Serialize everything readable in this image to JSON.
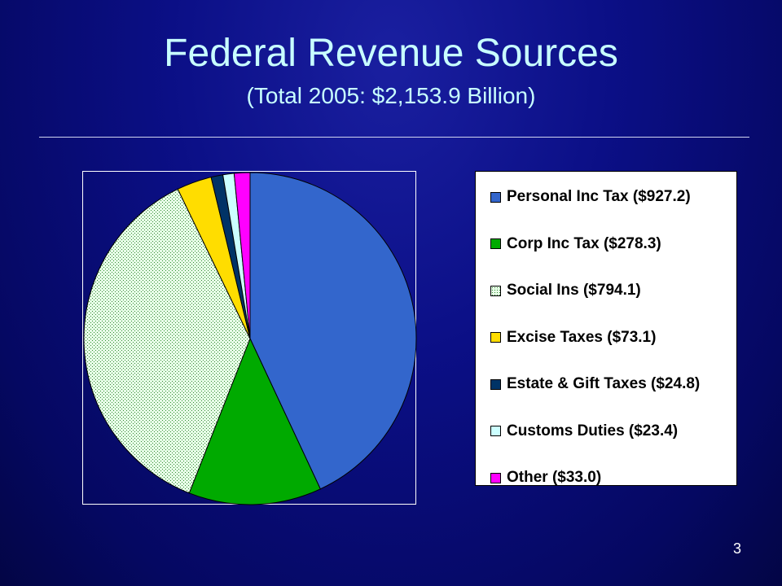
{
  "slide": {
    "title": "Federal Revenue Sources",
    "subtitle": "(Total 2005: $2,153.9 Billion)",
    "page_number": "3"
  },
  "chart_data": {
    "type": "pie",
    "title": "",
    "legend_position": "right",
    "categories": [
      "Personal Inc Tax",
      "Corp Inc Tax",
      "Social Ins",
      "Excise Taxes",
      "Estate & Gift Taxes",
      "Customs Duties",
      "Other"
    ],
    "values": [
      927.2,
      278.3,
      794.1,
      73.1,
      24.8,
      23.4,
      33.0
    ],
    "legend_labels": [
      "Personal Inc Tax ($927.2)",
      "Corp Inc Tax ($278.3)",
      "Social Ins ($794.1)",
      "Excise Taxes ($73.1)",
      "Estate & Gift Taxes ($24.8)",
      "Customs Duties ($23.4)",
      "Other ($33.0)"
    ],
    "colors": [
      "#3366cc",
      "#00aa00",
      "#ccffcc",
      "#ffdd00",
      "#003366",
      "#ccffff",
      "#ff00ff"
    ],
    "patterns": [
      "solid",
      "solid",
      "dotted",
      "solid",
      "solid",
      "solid",
      "solid"
    ]
  }
}
